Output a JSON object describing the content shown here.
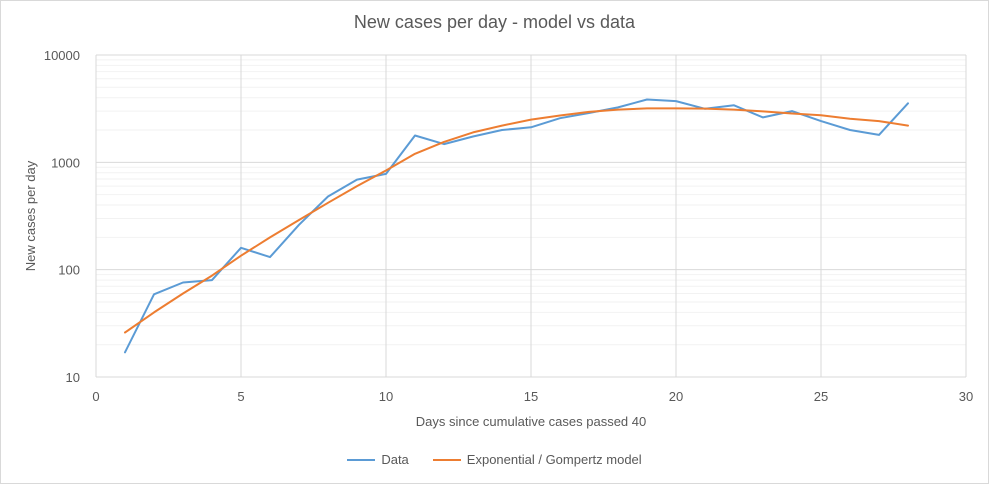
{
  "chart_data": {
    "type": "line",
    "title": "New cases per day - model vs data",
    "xlabel": "Days since cumulative cases passed 40",
    "ylabel": "New cases per day",
    "xlim": [
      0,
      30
    ],
    "ylim": [
      10,
      10000
    ],
    "y_scale": "log",
    "x_ticks": [
      "0",
      "5",
      "10",
      "15",
      "20",
      "25",
      "30"
    ],
    "y_ticks": [
      "10",
      "100",
      "1000",
      "10000"
    ],
    "grid": true,
    "legend_position": "bottom",
    "series": [
      {
        "name": "Data",
        "color": "#5b9bd5",
        "x": [
          1,
          2,
          3,
          4,
          5,
          6,
          7,
          8,
          9,
          10,
          11,
          12,
          13,
          14,
          15,
          16,
          17,
          18,
          19,
          20,
          21,
          22,
          23,
          24,
          25,
          26,
          27,
          28
        ],
        "values": [
          17,
          59,
          76,
          80,
          160,
          131,
          262,
          480,
          690,
          780,
          1780,
          1480,
          1740,
          2000,
          2120,
          2580,
          2880,
          3250,
          3850,
          3720,
          3150,
          3400,
          2620,
          3000,
          2420,
          2000,
          1800,
          3550
        ]
      },
      {
        "name": "Exponential / Gompertz model",
        "color": "#ed7d31",
        "x": [
          1,
          2,
          3,
          4,
          5,
          6,
          7,
          8,
          9,
          10,
          11,
          12,
          13,
          14,
          15,
          16,
          17,
          18,
          19,
          20,
          21,
          22,
          23,
          24,
          25,
          26,
          27,
          28
        ],
        "values": [
          26,
          40,
          60,
          88,
          135,
          200,
          290,
          420,
          600,
          840,
          1200,
          1550,
          1900,
          2200,
          2500,
          2730,
          2950,
          3100,
          3180,
          3180,
          3170,
          3100,
          2980,
          2850,
          2750,
          2550,
          2420,
          2200
        ]
      }
    ]
  }
}
